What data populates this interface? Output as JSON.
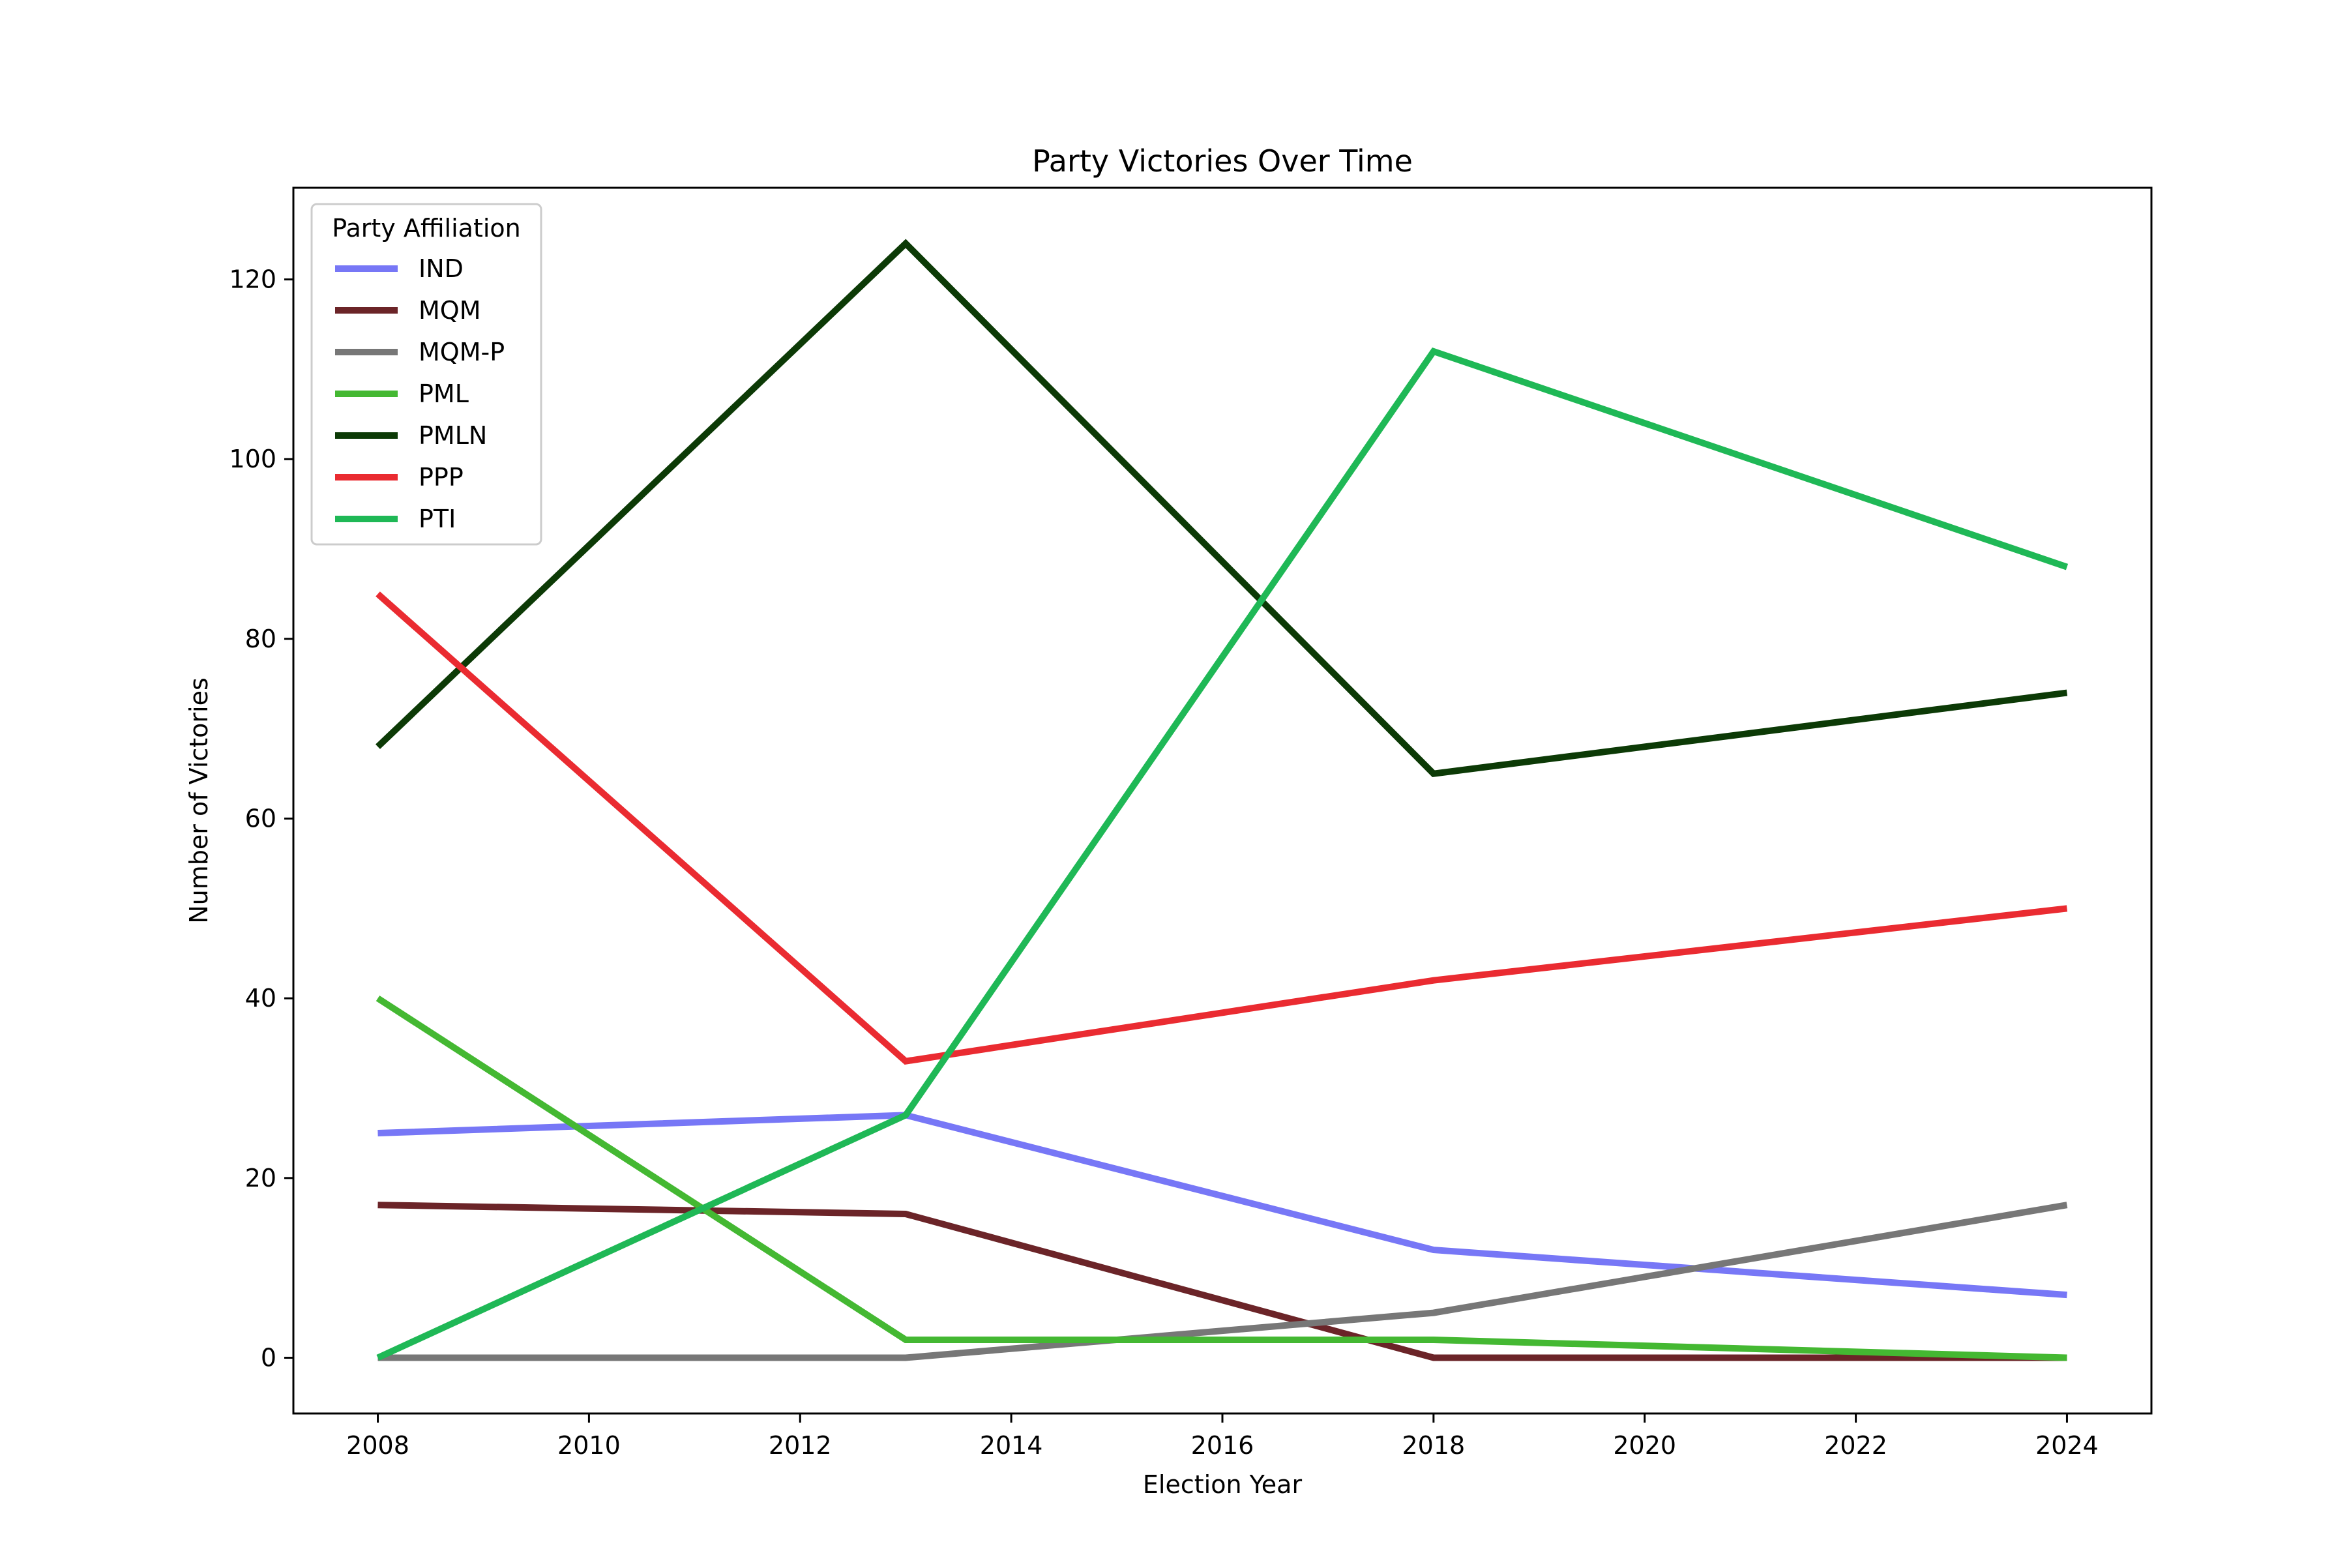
{
  "chart_data": {
    "type": "line",
    "title": "Party Victories Over Time",
    "xlabel": "Election Year",
    "ylabel": "Number of Victories",
    "x": [
      2008,
      2013,
      2018,
      2024
    ],
    "xlim": [
      2007.2,
      2024.8
    ],
    "ylim": [
      -6.2,
      130.2
    ],
    "xticks": [
      2008,
      2010,
      2012,
      2014,
      2016,
      2018,
      2020,
      2022,
      2024
    ],
    "yticks": [
      0,
      20,
      40,
      60,
      80,
      100,
      120
    ],
    "grid": false,
    "legend": {
      "title": "Party Affiliation",
      "placement": "top-left"
    },
    "series": [
      {
        "name": "IND",
        "color": "#7777f6",
        "values": [
          25,
          27,
          12,
          7
        ]
      },
      {
        "name": "MQM",
        "color": "#6b2428",
        "values": [
          17,
          16,
          0,
          0
        ]
      },
      {
        "name": "MQM-P",
        "color": "#777777",
        "values": [
          0,
          0,
          5,
          17
        ]
      },
      {
        "name": "PML",
        "color": "#44b832",
        "values": [
          40,
          2,
          2,
          0
        ]
      },
      {
        "name": "PMLN",
        "color": "#0c3a06",
        "values": [
          68,
          124,
          65,
          74
        ]
      },
      {
        "name": "PPP",
        "color": "#ea2b31",
        "values": [
          85,
          33,
          42,
          50
        ]
      },
      {
        "name": "PTI",
        "color": "#1fb856",
        "values": [
          0,
          27,
          112,
          88
        ]
      }
    ]
  }
}
